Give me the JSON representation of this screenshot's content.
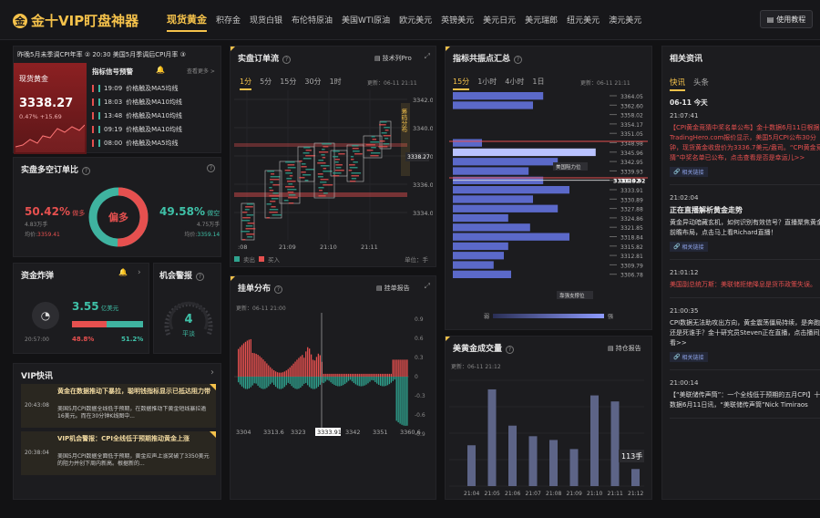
{
  "app": {
    "logo_icon": "gold-coin-icon",
    "title": "金十VIP盯盘神器"
  },
  "nav": {
    "items": [
      "现货黄金",
      "积存金",
      "现货白银",
      "布伦特原油",
      "美国WTI原油",
      "欧元美元",
      "英镑美元",
      "美元日元",
      "美元瑞郎",
      "纽元美元",
      "澳元美元"
    ],
    "new_badge": "NEW",
    "tutorial": "使用教程"
  },
  "ticker": {
    "text": "昨晚5月未季调CPI年率 ② 20:30 美国5月季调后CPI月率 ③"
  },
  "spot": {
    "title": "现货黄金",
    "price": "3338.27",
    "change_pct": "0.47%",
    "change": "+15.69"
  },
  "signals": {
    "title": "指标信号预警",
    "more": "查看更多 >",
    "items": [
      {
        "time": "19:09",
        "text": "价格触及MA5均线"
      },
      {
        "time": "18:03",
        "text": "价格触及MA10均线"
      },
      {
        "time": "13:48",
        "text": "价格触及MA10均线"
      },
      {
        "time": "09:19",
        "text": "价格触及MA10均线"
      },
      {
        "time": "08:00",
        "text": "价格触及MA5均线"
      }
    ]
  },
  "longshort": {
    "title": "实盘多空订单比",
    "long_pct": "50.42%",
    "long_label": "做多",
    "long_amt": "4.83万手",
    "long_avg_label": "均价:",
    "long_avg": "3359.41",
    "center": "偏多",
    "short_pct": "49.58%",
    "short_label": "做空",
    "short_amt": "4.75万手",
    "short_avg_label": "均价:",
    "short_avg": "3359.14",
    "long_fraction": 0.5042
  },
  "bomb": {
    "title": "资金炸弹",
    "time": "20:57:00",
    "amount": "3.55",
    "unit": "亿美元",
    "red_pct": "48.8%",
    "green_pct": "51.2%",
    "red_fraction": 0.488
  },
  "alarm": {
    "title": "机会警报",
    "value": "4",
    "label": "平淡"
  },
  "vip": {
    "title": "VIP快讯",
    "items": [
      {
        "time": "20:43:08",
        "title": "黄金在数据推动下暴拉，聪明钱指标显示已抵达阻力带",
        "body": "美国5月CPI数据全线低于预期，在数据推动下黄金短线暴拉逾16美元。而在30分钟K线图中..."
      },
      {
        "time": "20:38:04",
        "title": "VIP机会警报：CPI全线低于预期推动黄金上涨",
        "body": "美国5月CPI数据全面低于预期，黄金应声上涨突破了3350美元的阻力并创下周内新高。根据新的..."
      }
    ]
  },
  "orderflow": {
    "title": "实盘订单流",
    "pro_btn": "技术列Pro",
    "tabs": [
      "1分",
      "5分",
      "15分",
      "30分",
      "1时"
    ],
    "updated": "更新：06-11 21:11",
    "y_ticks": [
      "3342.0",
      "3340.0",
      "3338.0",
      "3336.0",
      "3334.0"
    ],
    "x_ticks": [
      ":08",
      "21:09",
      "21:10",
      "21:11"
    ],
    "side_label": "筹码分布",
    "price_tag": "3338.27",
    "legend_sell": "卖出",
    "legend_buy": "买入",
    "unit": "单位：手"
  },
  "pending": {
    "title": "挂单分布",
    "report_btn": "挂单报告",
    "updated": "更新：06-11 21:00",
    "y_ticks": [
      "0.9",
      "0.6",
      "0.3",
      "0",
      "-0.3",
      "-0.6",
      "-0.9"
    ],
    "x_ticks": [
      "3304",
      "3313.6",
      "3323",
      "3333.91",
      "3342",
      "3351",
      "3360.6"
    ]
  },
  "consensus": {
    "title": "指标共振点汇总",
    "tabs": [
      "15分",
      "1小时",
      "4小时",
      "1日"
    ],
    "updated": "更新：06-11 21:11",
    "levels": [
      "3364.05",
      "3362.60",
      "3358.02",
      "3354.17",
      "3351.05",
      "3348.98",
      "3345.96",
      "3342.95",
      "3339.93",
      "3336.92",
      "3333.91",
      "3330.89",
      "3327.88",
      "3324.86",
      "3321.85",
      "3318.84",
      "3315.82",
      "3312.81",
      "3309.79",
      "3306.78"
    ],
    "current": "3336.92",
    "bars": [
      0.62,
      0.55,
      0,
      0,
      0,
      0.2,
      0.98,
      0.72,
      0.52,
      0.62,
      0.8,
      0.55,
      0.72,
      0.38,
      0.53,
      0.8,
      0.38,
      0.35,
      0.28,
      0.4
    ],
    "tag1": "美国阻力位",
    "tag2": "靠强支撑位",
    "weak": "弱",
    "strong": "强"
  },
  "gold_vol": {
    "title": "美黄金成交量",
    "report_btn": "持仓报告",
    "updated": "更新：06-11 21:12",
    "x_ticks": [
      "21:04",
      "21:05",
      "21:06",
      "21:07",
      "21:08",
      "21:09",
      "21:10",
      "21:11",
      "21:12"
    ],
    "values": [
      270,
      640,
      400,
      330,
      305,
      245,
      600,
      560,
      113
    ],
    "ymax": 700,
    "tooltip": "113手"
  },
  "news": {
    "title": "相关资讯",
    "tabs": [
      "快讯",
      "头条"
    ],
    "date": "06-11 今天",
    "link_label": "相关链接",
    "items": [
      {
        "time": "21:07:41",
        "text": "【CPI黄金竞猜中奖名单公布】金十数据6月11日根据TradingHero.com报价显示，美国5月CPI公布30分钟，现货黄金收盘价为3336.7美元/盎司。“CPI黄金竞猜”中奖名单已公布，点击查看是否是幸运儿>>",
        "red": true,
        "link": true
      },
      {
        "time": "21:02:04",
        "title": "正在直播解析黄金走势",
        "text": "黄金异动暗藏玄机，如何识别有效信号？直播聚焦黄金前瞻布局，点击马上看Richard直播！",
        "link": true
      },
      {
        "time": "21:01:12",
        "text": "美国副总统万斯：美联储拒绝降息是货币政策失误。",
        "red": true
      },
      {
        "time": "21:00:35",
        "text": "CPI数据无法助攻出方向，黄金震荡僵局持续，是奔跑还是死谁手？金十研究员Steven正在直播，点击播间观看>>",
        "link": true
      },
      {
        "time": "21:00:14",
        "text": "【“美联储传声筒”：一个全线低于预期的五月CPI】十数据6月11日讯，“美联储传声筒”Nick Timiraos"
      }
    ]
  }
}
